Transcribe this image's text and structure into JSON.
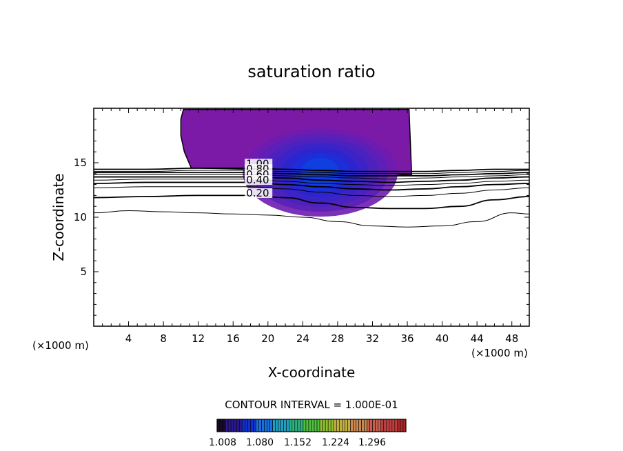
{
  "chart_data": {
    "type": "contour",
    "title": "saturation ratio",
    "xlabel": "X-coordinate",
    "ylabel": "Z-coordinate",
    "x_unit": "(×1000 m)",
    "z_unit": "(×1000 m)",
    "xlim": [
      0,
      50
    ],
    "ylim": [
      0,
      20
    ],
    "x_ticks": [
      4,
      8,
      12,
      16,
      20,
      24,
      28,
      32,
      36,
      40,
      44,
      48
    ],
    "y_ticks": [
      5,
      10,
      15
    ],
    "contour_interval_text": "CONTOUR INTERVAL = 1.000E-01",
    "colorbar": {
      "tick_labels": [
        "1.008",
        "1.080",
        "1.152",
        "1.224",
        "1.296"
      ],
      "colors": [
        "#1a0a2a",
        "#2a1890",
        "#1030d0",
        "#1870e0",
        "#20a0c0",
        "#30b080",
        "#50c040",
        "#90c030",
        "#c0b040",
        "#c88850",
        "#c86050",
        "#c04040",
        "#b02828"
      ]
    },
    "contour_labels": [
      "1.00",
      "0.80",
      "0.60",
      "0.40",
      "0.20"
    ],
    "contour_lines": [
      {
        "level": 0.2,
        "labeled": true,
        "points": [
          [
            0,
            11.8
          ],
          [
            6,
            11.9
          ],
          [
            12,
            12.0
          ],
          [
            18,
            12.0
          ],
          [
            22,
            11.8
          ],
          [
            26,
            11.3
          ],
          [
            30,
            10.9
          ],
          [
            34,
            10.8
          ],
          [
            38,
            10.8
          ],
          [
            42,
            11.0
          ],
          [
            46,
            11.6
          ],
          [
            50,
            11.9
          ]
        ]
      },
      {
        "level": 0.1,
        "labeled": false,
        "points": [
          [
            0,
            10.4
          ],
          [
            4,
            10.6
          ],
          [
            8,
            10.5
          ],
          [
            12,
            10.4
          ],
          [
            16,
            10.3
          ],
          [
            20,
            10.2
          ],
          [
            24,
            10.0
          ],
          [
            28,
            9.6
          ],
          [
            32,
            9.2
          ],
          [
            36,
            9.1
          ],
          [
            40,
            9.2
          ],
          [
            44,
            9.6
          ],
          [
            48,
            10.4
          ],
          [
            50,
            10.3
          ]
        ]
      },
      {
        "level": 0.3,
        "labeled": false,
        "points": [
          [
            0,
            12.7
          ],
          [
            6,
            12.8
          ],
          [
            12,
            12.8
          ],
          [
            18,
            12.8
          ],
          [
            22,
            12.6
          ],
          [
            26,
            12.3
          ],
          [
            30,
            12.0
          ],
          [
            34,
            11.9
          ],
          [
            38,
            12.0
          ],
          [
            42,
            12.2
          ],
          [
            46,
            12.5
          ],
          [
            50,
            12.7
          ]
        ]
      },
      {
        "level": 0.4,
        "labeled": true,
        "points": [
          [
            0,
            13.1
          ],
          [
            6,
            13.2
          ],
          [
            12,
            13.2
          ],
          [
            18,
            13.2
          ],
          [
            22,
            13.0
          ],
          [
            26,
            12.8
          ],
          [
            30,
            12.6
          ],
          [
            34,
            12.5
          ],
          [
            38,
            12.6
          ],
          [
            42,
            12.8
          ],
          [
            46,
            13.0
          ],
          [
            50,
            13.1
          ]
        ]
      },
      {
        "level": 0.5,
        "labeled": false,
        "points": [
          [
            0,
            13.4
          ],
          [
            6,
            13.5
          ],
          [
            12,
            13.5
          ],
          [
            18,
            13.5
          ],
          [
            22,
            13.3
          ],
          [
            26,
            13.1
          ],
          [
            30,
            13.0
          ],
          [
            34,
            12.9
          ],
          [
            38,
            13.0
          ],
          [
            42,
            13.1
          ],
          [
            46,
            13.3
          ],
          [
            50,
            13.4
          ]
        ]
      },
      {
        "level": 0.6,
        "labeled": true,
        "points": [
          [
            0,
            13.7
          ],
          [
            6,
            13.7
          ],
          [
            12,
            13.7
          ],
          [
            18,
            13.7
          ],
          [
            22,
            13.6
          ],
          [
            26,
            13.4
          ],
          [
            30,
            13.3
          ],
          [
            34,
            13.2
          ],
          [
            38,
            13.3
          ],
          [
            42,
            13.4
          ],
          [
            46,
            13.6
          ],
          [
            50,
            13.7
          ]
        ]
      },
      {
        "level": 0.7,
        "labeled": false,
        "points": [
          [
            0,
            13.9
          ],
          [
            6,
            13.9
          ],
          [
            12,
            13.9
          ],
          [
            18,
            13.9
          ],
          [
            22,
            13.8
          ],
          [
            26,
            13.7
          ],
          [
            30,
            13.6
          ],
          [
            34,
            13.5
          ],
          [
            38,
            13.6
          ],
          [
            42,
            13.7
          ],
          [
            46,
            13.8
          ],
          [
            50,
            13.9
          ]
        ]
      },
      {
        "level": 0.8,
        "labeled": true,
        "points": [
          [
            0,
            14.1
          ],
          [
            6,
            14.1
          ],
          [
            12,
            14.1
          ],
          [
            18,
            14.1
          ],
          [
            22,
            14.0
          ],
          [
            26,
            13.9
          ],
          [
            30,
            13.8
          ],
          [
            34,
            13.8
          ],
          [
            38,
            13.8
          ],
          [
            42,
            13.9
          ],
          [
            46,
            14.0
          ],
          [
            50,
            14.1
          ]
        ]
      },
      {
        "level": 0.9,
        "labeled": false,
        "points": [
          [
            0,
            14.2
          ],
          [
            6,
            14.2
          ],
          [
            12,
            14.3
          ],
          [
            18,
            14.3
          ],
          [
            22,
            14.2
          ],
          [
            26,
            14.1
          ],
          [
            30,
            14.0
          ],
          [
            34,
            14.0
          ],
          [
            38,
            14.0
          ],
          [
            42,
            14.1
          ],
          [
            46,
            14.2
          ],
          [
            50,
            14.3
          ]
        ]
      },
      {
        "level": 1.0,
        "labeled": true,
        "points": [
          [
            0,
            14.4
          ],
          [
            6,
            14.4
          ],
          [
            12,
            14.5
          ],
          [
            18,
            14.5
          ],
          [
            22,
            14.4
          ],
          [
            26,
            14.3
          ],
          [
            30,
            14.2
          ],
          [
            34,
            14.2
          ],
          [
            38,
            14.2
          ],
          [
            42,
            14.3
          ],
          [
            46,
            14.4
          ],
          [
            50,
            14.4
          ]
        ]
      }
    ],
    "supersaturated_region": {
      "outline": [
        [
          10.3,
          19.9
        ],
        [
          36.2,
          19.9
        ],
        [
          36.5,
          13.9
        ],
        [
          36.0,
          13.9
        ],
        [
          30.0,
          14.0
        ],
        [
          24.0,
          14.2
        ],
        [
          18.0,
          14.4
        ],
        [
          12.0,
          14.5
        ],
        [
          11.2,
          14.5
        ],
        [
          10.4,
          16.0
        ],
        [
          10.0,
          17.5
        ],
        [
          10.0,
          19.0
        ]
      ],
      "fill_colors": [
        "#7c1aa8",
        "#6e1cb0",
        "#5a20b8",
        "#4a22c0",
        "#3a24c8",
        "#2a26d0",
        "#1a30d8",
        "#1040e0"
      ]
    }
  }
}
